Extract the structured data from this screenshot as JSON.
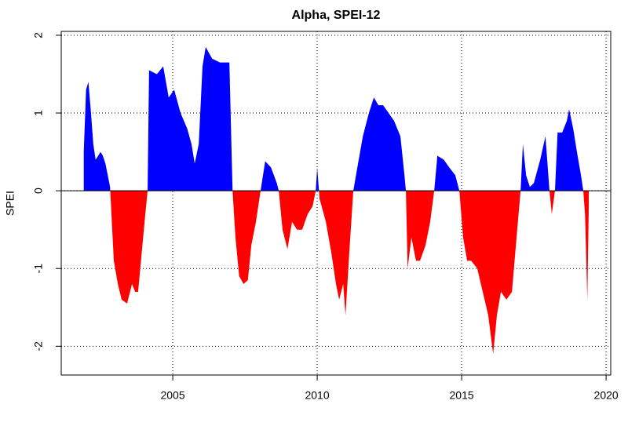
{
  "chart_data": {
    "type": "area",
    "title": "Alpha, SPEI-12",
    "y_label": "SPEI",
    "x": [
      2001.92,
      2002.0,
      2002.08,
      2002.17,
      2002.25,
      2002.33,
      2002.42,
      2002.5,
      2002.58,
      2002.67,
      2002.75,
      2002.83,
      2002.96,
      2003.1,
      2003.23,
      2003.42,
      2003.59,
      2003.7,
      2003.8,
      2003.9,
      2004.05,
      2004.13,
      2004.18,
      2004.45,
      2004.67,
      2004.86,
      2005.05,
      2005.27,
      2005.5,
      2005.65,
      2005.76,
      2005.9,
      2006.03,
      2006.14,
      2006.36,
      2006.63,
      2006.96,
      2007.07,
      2007.17,
      2007.3,
      2007.45,
      2007.6,
      2007.72,
      2007.88,
      2008.04,
      2008.2,
      2008.4,
      2008.6,
      2008.67,
      2008.8,
      2008.97,
      2009.13,
      2009.3,
      2009.48,
      2009.67,
      2009.84,
      2009.95,
      2010.0,
      2010.08,
      2010.3,
      2010.49,
      2010.65,
      2010.76,
      2010.9,
      2010.98,
      2011.11,
      2011.25,
      2011.39,
      2011.58,
      2011.79,
      2011.96,
      2012.12,
      2012.28,
      2012.47,
      2012.66,
      2012.88,
      2013.02,
      2013.07,
      2013.13,
      2013.26,
      2013.42,
      2013.56,
      2013.75,
      2013.91,
      2014.05,
      2014.16,
      2014.38,
      2014.57,
      2014.78,
      2014.92,
      2015.05,
      2015.19,
      2015.33,
      2015.54,
      2015.73,
      2015.92,
      2016.09,
      2016.22,
      2016.36,
      2016.55,
      2016.74,
      2016.9,
      2017.04,
      2017.12,
      2017.23,
      2017.36,
      2017.5,
      2017.72,
      2017.9,
      2018.04,
      2018.12,
      2018.23,
      2018.32,
      2018.48,
      2018.64,
      2018.72,
      2018.86,
      2018.99,
      2019.13,
      2019.21,
      2019.27,
      2019.35,
      2019.4
    ],
    "values": [
      0.5,
      1.3,
      1.4,
      1.0,
      0.6,
      0.4,
      0.45,
      0.5,
      0.45,
      0.35,
      0.2,
      0.05,
      -0.9,
      -1.2,
      -1.4,
      -1.45,
      -1.2,
      -1.3,
      -1.3,
      -0.9,
      -0.3,
      0,
      1.55,
      1.5,
      1.6,
      1.2,
      1.3,
      1.0,
      0.8,
      0.6,
      0.35,
      0.6,
      1.6,
      1.85,
      1.7,
      1.65,
      1.65,
      0,
      -0.6,
      -1.1,
      -1.2,
      -1.15,
      -0.7,
      -0.4,
      0,
      0.38,
      0.3,
      0.1,
      0,
      -0.5,
      -0.75,
      -0.4,
      -0.5,
      -0.5,
      -0.3,
      -0.2,
      0,
      0.3,
      -0.1,
      -0.4,
      -0.8,
      -1.2,
      -1.4,
      -1.2,
      -1.6,
      -0.8,
      0,
      0.3,
      0.7,
      1.0,
      1.2,
      1.1,
      1.1,
      1.0,
      0.9,
      0.7,
      0.2,
      0,
      -1.0,
      -0.6,
      -0.9,
      -0.9,
      -0.7,
      -0.4,
      0,
      0.45,
      0.4,
      0.3,
      0.2,
      0,
      -0.6,
      -0.9,
      -0.9,
      -1.0,
      -1.3,
      -1.6,
      -2.1,
      -1.6,
      -1.3,
      -1.4,
      -1.3,
      -0.6,
      0,
      0.6,
      0.2,
      0.05,
      0.1,
      0.4,
      0.7,
      0,
      -0.3,
      0,
      0.75,
      0.75,
      0.9,
      1.05,
      0.8,
      0.5,
      0.2,
      0,
      -0.3,
      -1.4,
      -0.2
    ],
    "positive_color": "#0000ff",
    "negative_color": "#ff0000",
    "xlim": [
      2001.14,
      2020.16
    ],
    "ylim": [
      -2.37,
      2.05
    ],
    "xticks": [
      2005,
      2010,
      2015,
      2020
    ],
    "yticks": [
      -2,
      -1,
      0,
      1,
      2
    ],
    "grid": true
  }
}
